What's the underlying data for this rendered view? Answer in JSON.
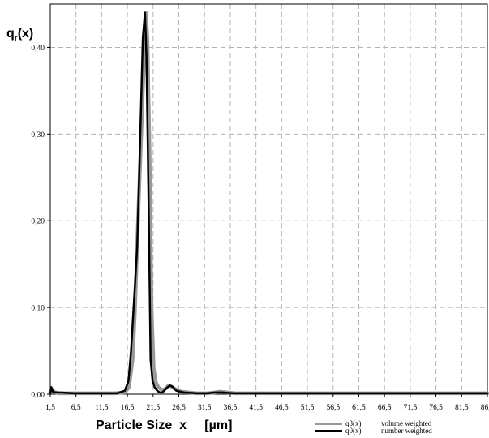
{
  "chart_data": {
    "type": "line",
    "ylabel_base": "q",
    "ylabel_sub": "r",
    "ylabel_tail": "(x)",
    "xlabel": "Particle Size  x     [µm]",
    "xlim": [
      1.5,
      86.5
    ],
    "ylim": [
      0,
      0.45
    ],
    "grid": true,
    "legend_position": "bottom-right",
    "x_ticks": [
      "1,5",
      "6,5",
      "11,5",
      "16,5",
      "21,5",
      "26,5",
      "31,5",
      "36,5",
      "41,5",
      "46,5",
      "51,5",
      "56,5",
      "61,5",
      "66,5",
      "71,5",
      "76,5",
      "81,5",
      "86,5"
    ],
    "y_ticks": [
      "0,00",
      "0,10",
      "0,20",
      "0,30",
      "0,40"
    ],
    "series": [
      {
        "name": "q3(x)",
        "description": "volume weighted",
        "color": "#999999",
        "x": [
          1.5,
          1.8,
          2.2,
          3.0,
          5.0,
          10.0,
          14.0,
          16.0,
          16.8,
          17.5,
          18.0,
          18.5,
          19.2,
          19.8,
          20.1,
          20.4,
          20.8,
          21.2,
          21.6,
          22.0,
          22.5,
          23.0,
          23.5,
          24.0,
          24.5,
          25.0,
          25.8,
          26.8,
          30.0,
          32.0,
          33.5,
          34.5,
          36.0,
          37.5,
          40.0,
          86.5
        ],
        "y": [
          0.002,
          0.006,
          0.003,
          0.001,
          0.001,
          0.001,
          0.001,
          0.002,
          0.008,
          0.04,
          0.1,
          0.19,
          0.3,
          0.395,
          0.44,
          0.41,
          0.28,
          0.1,
          0.03,
          0.014,
          0.008,
          0.006,
          0.005,
          0.007,
          0.01,
          0.009,
          0.006,
          0.003,
          0.001,
          0.001,
          0.002,
          0.003,
          0.002,
          0.001,
          0.001,
          0.001
        ]
      },
      {
        "name": "q0(x)",
        "description": "number weighted",
        "color": "#000000",
        "x": [
          1.5,
          1.7,
          2.0,
          2.5,
          3.5,
          6.0,
          10.0,
          14.5,
          16.0,
          16.7,
          17.2,
          17.8,
          18.4,
          19.0,
          19.5,
          19.9,
          20.2,
          20.6,
          21.0,
          21.4,
          21.8,
          22.3,
          22.8,
          23.3,
          23.8,
          24.3,
          24.8,
          25.4,
          26.0,
          27.5,
          30.0,
          32.0,
          33.5,
          35.0,
          37.0,
          40.0,
          86.5
        ],
        "y": [
          0.001,
          0.008,
          0.003,
          0.002,
          0.002,
          0.001,
          0.001,
          0.001,
          0.004,
          0.015,
          0.05,
          0.11,
          0.17,
          0.3,
          0.41,
          0.44,
          0.39,
          0.23,
          0.04,
          0.015,
          0.008,
          0.004,
          0.002,
          0.002,
          0.005,
          0.008,
          0.01,
          0.008,
          0.004,
          0.002,
          0.001,
          0.001,
          0.002,
          0.002,
          0.001,
          0.001,
          0.001
        ]
      }
    ]
  }
}
